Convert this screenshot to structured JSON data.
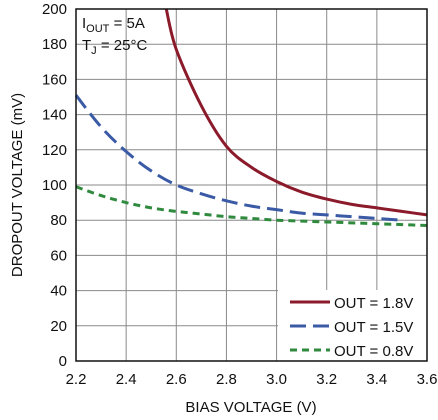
{
  "chart_data": {
    "type": "line",
    "title": "",
    "xlabel": "BIAS VOLTAGE (V)",
    "ylabel": "DROPOUT VOLTAGE (mV)",
    "xlim": [
      2.2,
      3.6
    ],
    "ylim": [
      0,
      200
    ],
    "x_ticks": [
      "2.2",
      "2.4",
      "2.6",
      "2.8",
      "3.0",
      "3.2",
      "3.4",
      "3.6"
    ],
    "y_ticks": [
      "0",
      "20",
      "40",
      "60",
      "80",
      "100",
      "120",
      "140",
      "160",
      "180",
      "200"
    ],
    "grid": true,
    "legend_position": "bottom-right",
    "annotations": {
      "line1_main": "I",
      "line1_sub": "OUT",
      "line1_rest": " = 5A",
      "line2_main": "T",
      "line2_sub": "J",
      "line2_rest": " = 25°C"
    },
    "series": [
      {
        "name": "OUT = 1.8V",
        "color": "#8b1a2b",
        "style": "solid",
        "x": [
          2.56,
          2.6,
          2.7,
          2.8,
          2.9,
          3.0,
          3.1,
          3.2,
          3.3,
          3.4,
          3.5,
          3.6
        ],
        "y": [
          200,
          177,
          145,
          122,
          110,
          102,
          96,
          92,
          89,
          87,
          85,
          83
        ]
      },
      {
        "name": "OUT = 1.5V",
        "color": "#3a5aa6",
        "style": "dashed",
        "x": [
          2.2,
          2.3,
          2.4,
          2.5,
          2.6,
          2.7,
          2.8,
          2.9,
          3.0,
          3.1,
          3.2,
          3.3,
          3.4,
          3.5
        ],
        "y": [
          151,
          133,
          119,
          108,
          100,
          95,
          91,
          88,
          86,
          84,
          83,
          82,
          81,
          80
        ]
      },
      {
        "name": "OUT = 0.8V",
        "color": "#2f8a3e",
        "style": "dotted",
        "x": [
          2.2,
          2.3,
          2.4,
          2.5,
          2.6,
          2.7,
          2.8,
          2.9,
          3.0,
          3.1,
          3.2,
          3.3,
          3.4,
          3.5,
          3.6
        ],
        "y": [
          99,
          94,
          90,
          87,
          85,
          83.5,
          82,
          81,
          80,
          79.5,
          79,
          78.5,
          78,
          77.5,
          77
        ]
      }
    ]
  }
}
